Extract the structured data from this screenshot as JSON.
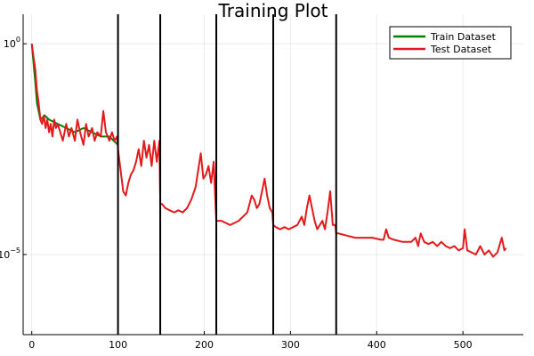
{
  "chart_data": {
    "type": "line",
    "title": "Training Plot",
    "xlabel": "",
    "ylabel": "",
    "yscale": "log",
    "xlim": [
      -10,
      570
    ],
    "ylim_log10": [
      -6.9,
      0.7
    ],
    "grid": true,
    "legend_position": "top-right",
    "x_ticks": [
      0,
      100,
      200,
      300,
      400,
      500
    ],
    "x_tick_labels": [
      "0",
      "100",
      "200",
      "300",
      "400",
      "500"
    ],
    "y_ticks_log10": [
      0,
      -5
    ],
    "y_tick_labels": [
      {
        "base": "10",
        "exp": "0"
      },
      {
        "base": "10",
        "exp": "−5"
      }
    ],
    "vertical_lines_x": [
      100,
      149,
      214,
      280,
      353
    ],
    "vertical_line_color": "#000000",
    "series": [
      {
        "name": "Train Dataset",
        "color": "#008000",
        "x": [
          0,
          4,
          6,
          10,
          15,
          20,
          30,
          40,
          50,
          60,
          70,
          80,
          90,
          95,
          100
        ],
        "log10_y": [
          0,
          -0.9,
          -1.4,
          -1.8,
          -1.7,
          -1.8,
          -1.9,
          -2.0,
          -2.1,
          -2.0,
          -2.1,
          -2.2,
          -2.2,
          -2.3,
          -2.4
        ]
      },
      {
        "name": "Test Dataset",
        "color": "#e31a1c",
        "x": [
          0,
          2,
          4,
          6,
          8,
          10,
          12,
          14,
          16,
          18,
          20,
          22,
          24,
          26,
          28,
          30,
          33,
          36,
          40,
          43,
          46,
          50,
          53,
          56,
          60,
          63,
          66,
          70,
          73,
          76,
          80,
          83,
          86,
          88,
          90,
          93,
          96,
          99,
          100,
          103,
          106,
          109,
          112,
          115,
          118,
          121,
          124,
          127,
          130,
          133,
          136,
          139,
          142,
          145,
          148,
          149,
          151,
          155,
          160,
          165,
          170,
          175,
          180,
          185,
          190,
          193,
          196,
          199,
          202,
          205,
          208,
          211,
          214,
          216,
          220,
          225,
          230,
          235,
          240,
          245,
          250,
          255,
          258,
          261,
          264,
          267,
          270,
          273,
          276,
          279,
          280,
          283,
          288,
          293,
          298,
          303,
          308,
          313,
          316,
          319,
          322,
          325,
          328,
          331,
          334,
          337,
          340,
          343,
          346,
          349,
          352,
          353,
          356,
          365,
          375,
          385,
          395,
          405,
          408,
          411,
          414,
          420,
          430,
          440,
          445,
          448,
          451,
          455,
          460,
          465,
          470,
          475,
          480,
          485,
          490,
          495,
          500,
          502,
          505,
          510,
          515,
          520,
          525,
          530,
          535,
          540,
          545,
          548,
          550
        ],
        "log10_y": [
          0,
          -0.3,
          -0.6,
          -1.1,
          -1.4,
          -1.8,
          -1.9,
          -1.7,
          -2.0,
          -1.8,
          -2.1,
          -1.9,
          -2.2,
          -1.8,
          -2.0,
          -1.9,
          -2.1,
          -2.3,
          -1.9,
          -2.2,
          -2.0,
          -2.3,
          -1.8,
          -2.1,
          -2.4,
          -1.9,
          -2.2,
          -2.0,
          -2.3,
          -2.1,
          -2.2,
          -1.6,
          -2.1,
          -2.2,
          -2.3,
          -2.1,
          -2.3,
          -2.2,
          -2.5,
          -3.0,
          -3.5,
          -3.6,
          -3.3,
          -3.1,
          -3.0,
          -2.8,
          -2.5,
          -2.9,
          -2.3,
          -2.7,
          -2.4,
          -2.9,
          -2.3,
          -2.8,
          -2.3,
          -3.8,
          -3.8,
          -3.9,
          -3.95,
          -4.0,
          -3.95,
          -4.0,
          -3.9,
          -3.7,
          -3.4,
          -3.0,
          -2.6,
          -3.2,
          -3.1,
          -2.9,
          -3.3,
          -2.8,
          -4.2,
          -4.2,
          -4.2,
          -4.25,
          -4.3,
          -4.25,
          -4.2,
          -4.1,
          -4.0,
          -3.6,
          -3.7,
          -3.9,
          -3.8,
          -3.5,
          -3.2,
          -3.6,
          -3.9,
          -4.0,
          -4.3,
          -4.35,
          -4.4,
          -4.35,
          -4.4,
          -4.35,
          -4.3,
          -4.1,
          -4.3,
          -3.9,
          -3.6,
          -3.9,
          -4.2,
          -4.4,
          -4.3,
          -4.2,
          -4.4,
          -4.0,
          -3.5,
          -4.3,
          -4.3,
          -4.5,
          -4.5,
          -4.55,
          -4.6,
          -4.6,
          -4.6,
          -4.65,
          -4.65,
          -4.4,
          -4.6,
          -4.65,
          -4.7,
          -4.7,
          -4.6,
          -4.8,
          -4.5,
          -4.7,
          -4.75,
          -4.7,
          -4.8,
          -4.7,
          -4.8,
          -4.85,
          -4.8,
          -4.9,
          -4.85,
          -4.4,
          -4.9,
          -4.95,
          -5.0,
          -4.8,
          -5.0,
          -4.9,
          -5.05,
          -4.95,
          -4.6,
          -4.9,
          -4.85
        ]
      }
    ]
  }
}
